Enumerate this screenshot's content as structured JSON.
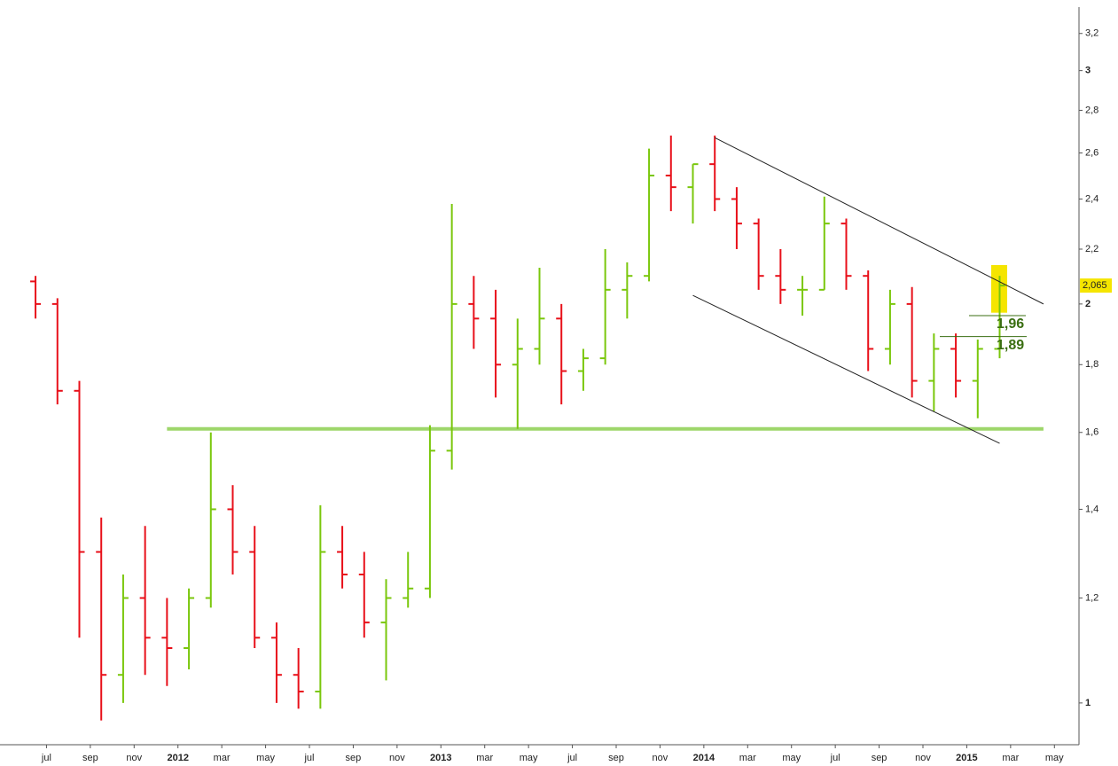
{
  "chart_data": {
    "type": "ohlc",
    "log_scale": true,
    "up_color": "#7ac70c",
    "down_color": "#e8101a",
    "x": [
      "2011-06",
      "2011-07",
      "2011-08",
      "2011-09",
      "2011-10",
      "2011-11",
      "2011-12",
      "2012-01",
      "2012-02",
      "2012-03",
      "2012-04",
      "2012-05",
      "2012-06",
      "2012-07",
      "2012-08",
      "2012-09",
      "2012-10",
      "2012-11",
      "2012-12",
      "2013-01",
      "2013-02",
      "2013-03",
      "2013-04",
      "2013-05",
      "2013-06",
      "2013-07",
      "2013-08",
      "2013-09",
      "2013-10",
      "2013-11",
      "2013-12",
      "2014-01",
      "2014-02",
      "2014-03",
      "2014-04",
      "2014-05",
      "2014-06",
      "2014-07",
      "2014-08",
      "2014-09",
      "2014-10",
      "2014-11",
      "2014-12",
      "2015-01",
      "2015-02"
    ],
    "open": [
      2.08,
      2.0,
      1.72,
      1.3,
      1.05,
      1.2,
      1.12,
      1.1,
      1.2,
      1.4,
      1.3,
      1.12,
      1.05,
      1.02,
      1.3,
      1.25,
      1.15,
      1.2,
      1.22,
      1.55,
      2.0,
      1.95,
      1.8,
      1.85,
      1.95,
      1.78,
      1.82,
      2.05,
      2.1,
      2.5,
      2.45,
      2.55,
      2.4,
      2.3,
      2.1,
      2.05,
      2.05,
      2.3,
      2.1,
      1.85,
      2.0,
      1.75,
      1.85,
      1.75,
      1.85
    ],
    "high": [
      2.1,
      2.02,
      1.75,
      1.38,
      1.25,
      1.36,
      1.2,
      1.22,
      1.6,
      1.46,
      1.36,
      1.15,
      1.1,
      1.41,
      1.36,
      1.3,
      1.24,
      1.3,
      1.62,
      2.38,
      2.1,
      2.05,
      1.95,
      2.13,
      2.0,
      1.85,
      2.2,
      2.15,
      2.62,
      2.68,
      2.55,
      2.68,
      2.45,
      2.32,
      2.2,
      2.1,
      2.41,
      2.32,
      2.12,
      2.05,
      2.06,
      1.9,
      1.9,
      1.88,
      2.1
    ],
    "low": [
      1.95,
      1.68,
      1.12,
      0.97,
      1.0,
      1.05,
      1.03,
      1.06,
      1.18,
      1.25,
      1.1,
      1.0,
      0.99,
      0.99,
      1.22,
      1.12,
      1.04,
      1.18,
      1.2,
      1.5,
      1.85,
      1.7,
      1.61,
      1.8,
      1.68,
      1.72,
      1.8,
      1.95,
      2.08,
      2.35,
      2.3,
      2.35,
      2.2,
      2.05,
      2.0,
      1.96,
      2.05,
      2.05,
      1.78,
      1.8,
      1.7,
      1.66,
      1.7,
      1.64,
      1.82
    ],
    "close": [
      2.0,
      1.72,
      1.3,
      1.05,
      1.2,
      1.12,
      1.1,
      1.2,
      1.4,
      1.3,
      1.12,
      1.05,
      1.02,
      1.3,
      1.25,
      1.15,
      1.2,
      1.22,
      1.55,
      2.0,
      1.95,
      1.8,
      1.85,
      1.95,
      1.78,
      1.82,
      2.05,
      2.1,
      2.5,
      2.45,
      2.55,
      2.4,
      2.3,
      2.1,
      2.05,
      2.05,
      2.3,
      2.1,
      1.85,
      2.0,
      1.75,
      1.85,
      1.75,
      1.85,
      2.065
    ],
    "xlim": [
      "2011-05",
      "2015-06"
    ],
    "xticks": [
      {
        "value": "2011-07",
        "label": "jul"
      },
      {
        "value": "2011-09",
        "label": "sep"
      },
      {
        "value": "2011-11",
        "label": "nov"
      },
      {
        "value": "2012-01",
        "label": "2012"
      },
      {
        "value": "2012-03",
        "label": "mar"
      },
      {
        "value": "2012-05",
        "label": "may"
      },
      {
        "value": "2012-07",
        "label": "jul"
      },
      {
        "value": "2012-09",
        "label": "sep"
      },
      {
        "value": "2012-11",
        "label": "nov"
      },
      {
        "value": "2013-01",
        "label": "2013"
      },
      {
        "value": "2013-03",
        "label": "mar"
      },
      {
        "value": "2013-05",
        "label": "may"
      },
      {
        "value": "2013-07",
        "label": "jul"
      },
      {
        "value": "2013-09",
        "label": "sep"
      },
      {
        "value": "2013-11",
        "label": "nov"
      },
      {
        "value": "2014-01",
        "label": "2014"
      },
      {
        "value": "2014-03",
        "label": "mar"
      },
      {
        "value": "2014-05",
        "label": "may"
      },
      {
        "value": "2014-07",
        "label": "jul"
      },
      {
        "value": "2014-09",
        "label": "sep"
      },
      {
        "value": "2014-11",
        "label": "nov"
      },
      {
        "value": "2015-01",
        "label": "2015"
      },
      {
        "value": "2015-03",
        "label": "mar"
      },
      {
        "value": "2015-05",
        "label": "may"
      }
    ],
    "ylim": [
      0.93,
      3.35
    ],
    "yticks": [
      1,
      {
        "value": 1.2,
        "label": "1,2"
      },
      {
        "value": 1.4,
        "label": "1,4"
      },
      {
        "value": 1.6,
        "label": "1,6"
      },
      {
        "value": 1.8,
        "label": "1,8"
      },
      2,
      {
        "value": 2.2,
        "label": "2,2"
      },
      {
        "value": 2.4,
        "label": "2,4"
      },
      {
        "value": 2.6,
        "label": "2,6"
      },
      {
        "value": 2.8,
        "label": "2,8"
      },
      3,
      {
        "value": 3.2,
        "label": "3,2"
      }
    ],
    "last_price": {
      "value": 2.065,
      "label": "2,065"
    },
    "support": {
      "x": [
        "2011-12",
        "2015-04"
      ],
      "y": [
        1.61,
        1.61
      ],
      "color": "#9ed66a"
    },
    "trendlines": [
      {
        "x": [
          "2014-01",
          "2015-04"
        ],
        "y": [
          2.67,
          2.0
        ]
      },
      {
        "x": [
          "2013-12",
          "2015-02"
        ],
        "y": [
          2.03,
          1.57
        ]
      }
    ],
    "annotations": [
      {
        "value": 1.96,
        "label": "1,96"
      },
      {
        "value": 1.89,
        "label": "1,89"
      }
    ],
    "highlight": {
      "y": [
        1.97,
        2.14
      ],
      "color": "#f5e500"
    }
  }
}
